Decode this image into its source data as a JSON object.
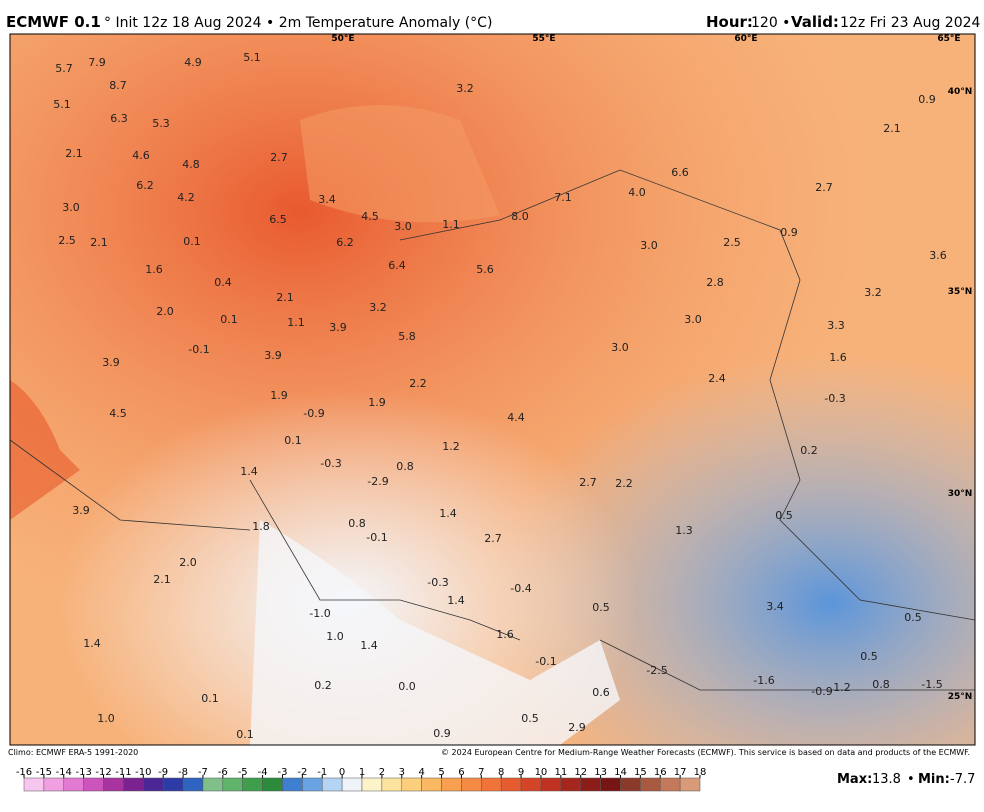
{
  "header": {
    "model": "ECMWF 0.1",
    "subtitle": "° Init 12z 18 Aug 2024 • 2m Temperature Anomaly (°C)",
    "hour_label": "Hour:",
    "hour": "120 •",
    "valid_label": "Valid:",
    "valid": "12z Fri 23 Aug 2024"
  },
  "map": {
    "lon_labels": [
      "50°E",
      "55°E",
      "60°E",
      "65°E"
    ],
    "lat_labels": [
      "40°N",
      "35°N",
      "30°N",
      "25°N"
    ],
    "point_labels": [
      "8.7",
      "7.9",
      "5.7",
      "4.9",
      "5.1",
      "5.1",
      "6.3",
      "5.3",
      "2.1",
      "4.6",
      "4.8",
      "2.7",
      "6.2",
      "4.2",
      "3.0",
      "3.4",
      "4.5",
      "3.0",
      "1.1",
      "6.5",
      "6.2",
      "2.5",
      "2.1",
      "0.1",
      "1.6",
      "6.4",
      "5.6",
      "0.4",
      "2.1",
      "2.0",
      "0.1",
      "1.1",
      "3.9",
      "3.2",
      "5.8",
      "-0.1",
      "3.9",
      "3.9",
      "1.9",
      "-0.9",
      "1.9",
      "2.2",
      "4.5",
      "0.1",
      "-0.3",
      "0.8",
      "-2.9",
      "1.4",
      "1.2",
      "4.4",
      "3.2",
      "8.0",
      "7.1",
      "4.0",
      "6.6",
      "3.0",
      "2.5",
      "0.9",
      "2.8",
      "3.0",
      "3.0",
      "2.4",
      "2.7",
      "2.2",
      "1.3",
      "3.9",
      "1.8",
      "0.8",
      "-0.1",
      "1.4",
      "2.7",
      "2.0",
      "2.1",
      "-0.3",
      "-0.4",
      "1.4",
      "0.5",
      "-1.0",
      "1.0",
      "1.4",
      "1.6",
      "1.4",
      "-0.1",
      "0.9",
      "0.5",
      "2.9",
      "0.6",
      "0.2",
      "0.0",
      "0.1",
      "1.0",
      "0.1",
      "-2.5",
      "-1.6",
      "-0.9",
      "1.2",
      "0.8",
      "-1.5",
      "0.5",
      "0.5",
      "3.4",
      "0.5",
      "0.2",
      "-0.3",
      "1.6",
      "3.3",
      "3.2",
      "3.6",
      "2.7",
      "2.1",
      "0.9"
    ]
  },
  "footer": {
    "climo": "Climo: ECMWF ERA-5 1991-2020",
    "credit": "© 2024 European Centre for Medium-Range Weather Forecasts (ECMWF). This service is based on data and products of the ECMWF.",
    "max_label": "Max:",
    "max": 13.8,
    "separator": "•",
    "min_label": "Min:",
    "min": -7.7
  },
  "colorbar": {
    "ticks": [
      -16,
      -15,
      -14,
      -13,
      -12,
      -11,
      -10,
      -9,
      -8,
      -7,
      -6,
      -5,
      -4,
      -3,
      -2,
      -1,
      0,
      1,
      2,
      3,
      4,
      5,
      6,
      7,
      8,
      9,
      10,
      11,
      12,
      13,
      14,
      15,
      16,
      17,
      18
    ],
    "colors": [
      "#f7c6ef",
      "#f0a0e2",
      "#e279d2",
      "#cc55bd",
      "#a8349f",
      "#7a2390",
      "#4a2794",
      "#2c3ba6",
      "#2e63c0",
      "#7fc08a",
      "#5fb36a",
      "#3f9e4c",
      "#2b8a3b",
      "#3f7fd0",
      "#6aa3e3",
      "#b4d4f3",
      "#eef3fa",
      "#fdf3c8",
      "#fce3a0",
      "#fccf7c",
      "#fbb862",
      "#f9a050",
      "#f58a44",
      "#f1733a",
      "#e65c30",
      "#d44528",
      "#bf3222",
      "#a5261d",
      "#8c1c18",
      "#761513",
      "#8a3a2a",
      "#a85a40",
      "#c47a5a",
      "#d89a78"
    ]
  }
}
